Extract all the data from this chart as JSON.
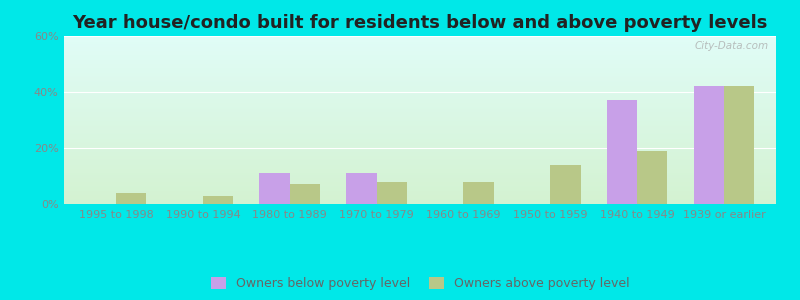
{
  "title": "Year house/condo built for residents below and above poverty levels",
  "categories": [
    "1995 to 1998",
    "1990 to 1994",
    "1980 to 1989",
    "1970 to 1979",
    "1960 to 1969",
    "1950 to 1959",
    "1940 to 1949",
    "1939 or earlier"
  ],
  "below_poverty": [
    0,
    0,
    11,
    11,
    0,
    0,
    37,
    42
  ],
  "above_poverty": [
    4,
    3,
    7,
    8,
    8,
    14,
    19,
    42
  ],
  "below_color": "#c8a0e8",
  "above_color": "#b8c888",
  "background_color": "#00e8e8",
  "ylim": [
    0,
    60
  ],
  "yticks": [
    0,
    20,
    40,
    60
  ],
  "ytick_labels": [
    "0%",
    "20%",
    "40%",
    "60%"
  ],
  "bar_width": 0.35,
  "legend_below_label": "Owners below poverty level",
  "legend_above_label": "Owners above poverty level",
  "title_fontsize": 13,
  "tick_fontsize": 8,
  "legend_fontsize": 9,
  "watermark": "City-Data.com"
}
